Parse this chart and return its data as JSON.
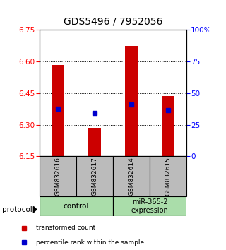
{
  "title": "GDS5496 / 7952056",
  "samples": [
    "GSM832616",
    "GSM832617",
    "GSM832614",
    "GSM832615"
  ],
  "bar_values": [
    6.585,
    6.285,
    6.675,
    6.435
  ],
  "bar_base": 6.15,
  "percentile_values": [
    6.375,
    6.355,
    6.395,
    6.37
  ],
  "ylim_left": [
    6.15,
    6.75
  ],
  "ylim_right": [
    0,
    100
  ],
  "yticks_left": [
    6.15,
    6.3,
    6.45,
    6.6,
    6.75
  ],
  "yticks_right": [
    0,
    25,
    50,
    75,
    100
  ],
  "bar_color": "#cc0000",
  "percentile_color": "#0000cc",
  "dotted_lines": [
    6.3,
    6.45,
    6.6
  ],
  "bar_width": 0.35,
  "legend_items": [
    {
      "label": "transformed count",
      "color": "#cc0000"
    },
    {
      "label": "percentile rank within the sample",
      "color": "#0000cc"
    }
  ],
  "group_color": "#aaddaa",
  "sample_box_color": "#bbbbbb",
  "title_fontsize": 10,
  "tick_fontsize": 7.5,
  "sample_fontsize": 6.5,
  "group_fontsize": 7.5,
  "legend_fontsize": 6.5
}
